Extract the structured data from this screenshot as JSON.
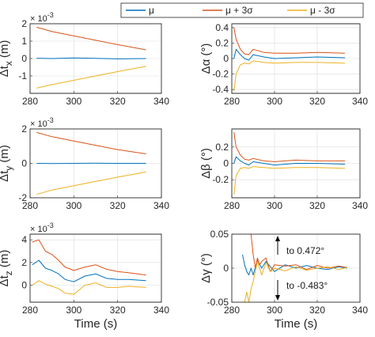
{
  "legend": {
    "items": [
      {
        "label": "μ",
        "color": "#0072BD"
      },
      {
        "label": "μ + 3σ",
        "color": "#D95319"
      },
      {
        "label": "μ - 3σ",
        "color": "#EDB120"
      }
    ]
  },
  "chart_data": [
    {
      "type": "line",
      "id": "tx",
      "ylabel_main": "Δt",
      "ylabel_sub": "x",
      "ylabel_unit": "(m)",
      "xlabel": "",
      "exponent": "× 10^-3",
      "xlim": [
        280,
        340
      ],
      "ylim": [
        -2,
        2
      ],
      "xticks": [
        280,
        300,
        320,
        340
      ],
      "yticks": [
        -1,
        0,
        1,
        2
      ],
      "xtick_labels": [
        "280",
        "300",
        "320",
        "340"
      ],
      "ytick_labels": [
        "-1",
        "0",
        "1",
        "2"
      ],
      "grid": true,
      "series": [
        {
          "name": "μ",
          "color": "#0072BD",
          "x": [
            283,
            290,
            300,
            310,
            320,
            333
          ],
          "y": [
            0.02,
            0.0,
            0.03,
            0.01,
            -0.02,
            0.0
          ]
        },
        {
          "name": "μ + 3σ",
          "color": "#D95319",
          "x": [
            283,
            290,
            300,
            310,
            320,
            333
          ],
          "y": [
            1.8,
            1.55,
            1.3,
            1.05,
            0.8,
            0.5
          ]
        },
        {
          "name": "μ - 3σ",
          "color": "#EDB120",
          "x": [
            283,
            290,
            300,
            310,
            320,
            333
          ],
          "y": [
            -1.7,
            -1.5,
            -1.25,
            -1.0,
            -0.75,
            -0.45
          ]
        }
      ]
    },
    {
      "type": "line",
      "id": "alpha",
      "ylabel_main": "Δα",
      "ylabel_sub": "",
      "ylabel_unit": "(°)",
      "xlabel": "",
      "exponent": "",
      "xlim": [
        280,
        340
      ],
      "ylim": [
        -0.45,
        0.45
      ],
      "xticks": [
        280,
        300,
        320,
        340
      ],
      "yticks": [
        -0.4,
        -0.2,
        0,
        0.2,
        0.4
      ],
      "xtick_labels": [
        "280",
        "300",
        "320",
        "340"
      ],
      "ytick_labels": [
        "-0.4",
        "-0.2",
        "0",
        "0.2",
        "0.4"
      ],
      "grid": true,
      "series": [
        {
          "name": "μ",
          "color": "#0072BD",
          "x": [
            281,
            282,
            284,
            286,
            288,
            290,
            295,
            300,
            310,
            320,
            333
          ],
          "y": [
            0.0,
            0.12,
            0.05,
            0.0,
            -0.02,
            0.05,
            0.02,
            0.0,
            0.01,
            0.02,
            0.01
          ]
        },
        {
          "name": "μ + 3σ",
          "color": "#D95319",
          "x": [
            281,
            282,
            284,
            286,
            288,
            290,
            295,
            300,
            310,
            320,
            333
          ],
          "y": [
            0.4,
            0.25,
            0.12,
            0.06,
            0.05,
            0.12,
            0.08,
            0.07,
            0.07,
            0.08,
            0.07
          ]
        },
        {
          "name": "μ - 3σ",
          "color": "#EDB120",
          "x": [
            281,
            282,
            284,
            286,
            288,
            290,
            295,
            300,
            310,
            320,
            333
          ],
          "y": [
            -0.42,
            -0.2,
            -0.08,
            -0.06,
            -0.07,
            -0.03,
            -0.05,
            -0.06,
            -0.05,
            -0.05,
            -0.06
          ]
        }
      ]
    },
    {
      "type": "line",
      "id": "ty",
      "ylabel_main": "Δt",
      "ylabel_sub": "y",
      "ylabel_unit": "(m)",
      "xlabel": "",
      "exponent": "× 10^-3",
      "xlim": [
        280,
        340
      ],
      "ylim": [
        -2,
        2
      ],
      "xticks": [
        280,
        300,
        320,
        340
      ],
      "yticks": [
        -2,
        0,
        2
      ],
      "xtick_labels": [
        "280",
        "300",
        "320",
        "340"
      ],
      "ytick_labels": [
        "-2",
        "0",
        "2"
      ],
      "grid": true,
      "series": [
        {
          "name": "μ",
          "color": "#0072BD",
          "x": [
            283,
            290,
            300,
            310,
            320,
            333
          ],
          "y": [
            0.0,
            -0.01,
            0.0,
            0.01,
            0.0,
            0.0
          ]
        },
        {
          "name": "μ + 3σ",
          "color": "#D95319",
          "x": [
            283,
            290,
            300,
            310,
            320,
            333
          ],
          "y": [
            1.8,
            1.55,
            1.3,
            1.05,
            0.8,
            0.55
          ]
        },
        {
          "name": "μ - 3σ",
          "color": "#EDB120",
          "x": [
            283,
            290,
            300,
            310,
            320,
            333
          ],
          "y": [
            -1.8,
            -1.55,
            -1.3,
            -1.05,
            -0.8,
            -0.5
          ]
        }
      ]
    },
    {
      "type": "line",
      "id": "beta",
      "ylabel_main": "Δβ",
      "ylabel_sub": "",
      "ylabel_unit": "(°)",
      "xlabel": "",
      "exponent": "",
      "xlim": [
        280,
        340
      ],
      "ylim": [
        -0.42,
        0.42
      ],
      "xticks": [
        280,
        300,
        320,
        340
      ],
      "yticks": [
        -0.2,
        0,
        0.2
      ],
      "xtick_labels": [
        "280",
        "300",
        "320",
        "340"
      ],
      "ytick_labels": [
        "-0.2",
        "0",
        "0.2"
      ],
      "grid": true,
      "series": [
        {
          "name": "μ",
          "color": "#0072BD",
          "x": [
            281,
            282,
            284,
            286,
            288,
            290,
            295,
            300,
            310,
            320,
            333
          ],
          "y": [
            0.0,
            0.08,
            0.03,
            0.0,
            -0.02,
            0.02,
            0.0,
            -0.02,
            0.0,
            0.0,
            -0.01
          ]
        },
        {
          "name": "μ + 3σ",
          "color": "#D95319",
          "x": [
            281,
            282,
            284,
            286,
            288,
            290,
            295,
            300,
            310,
            320,
            333
          ],
          "y": [
            0.38,
            0.2,
            0.1,
            0.05,
            0.04,
            0.06,
            0.03,
            0.02,
            0.04,
            0.03,
            0.03
          ]
        },
        {
          "name": "μ - 3σ",
          "color": "#EDB120",
          "x": [
            281,
            282,
            284,
            286,
            288,
            290,
            295,
            300,
            310,
            320,
            333
          ],
          "y": [
            -0.38,
            -0.15,
            -0.06,
            -0.05,
            -0.06,
            -0.04,
            -0.05,
            -0.06,
            -0.05,
            -0.05,
            -0.06
          ]
        }
      ]
    },
    {
      "type": "line",
      "id": "tz",
      "ylabel_main": "Δt",
      "ylabel_sub": "z",
      "ylabel_unit": "(m)",
      "xlabel": "Time (s)",
      "exponent": "× 10^-3",
      "xlim": [
        280,
        340
      ],
      "ylim": [
        -1.5,
        4.5
      ],
      "xticks": [
        280,
        300,
        320,
        340
      ],
      "yticks": [
        0,
        2,
        4
      ],
      "xtick_labels": [
        "280",
        "300",
        "320",
        "340"
      ],
      "ytick_labels": [
        "0",
        "2",
        "4"
      ],
      "grid": true,
      "series": [
        {
          "name": "μ",
          "color": "#0072BD",
          "x": [
            281,
            284,
            287,
            290,
            293,
            296,
            300,
            305,
            310,
            315,
            320,
            325,
            333
          ],
          "y": [
            1.8,
            2.2,
            1.5,
            1.3,
            1.0,
            0.5,
            0.3,
            0.8,
            1.0,
            0.6,
            0.5,
            0.5,
            0.4
          ]
        },
        {
          "name": "μ + 3σ",
          "color": "#D95319",
          "x": [
            281,
            284,
            287,
            290,
            293,
            296,
            300,
            305,
            310,
            315,
            320,
            325,
            333
          ],
          "y": [
            3.8,
            4.0,
            3.0,
            2.7,
            2.2,
            1.6,
            1.3,
            1.6,
            1.8,
            1.4,
            1.2,
            1.1,
            0.9
          ]
        },
        {
          "name": "μ - 3σ",
          "color": "#EDB120",
          "x": [
            281,
            284,
            287,
            290,
            293,
            296,
            300,
            305,
            310,
            315,
            320,
            325,
            333
          ],
          "y": [
            0.0,
            0.4,
            0.1,
            -0.1,
            -0.3,
            -0.7,
            -0.8,
            0.0,
            0.2,
            -0.2,
            -0.2,
            -0.1,
            -0.2
          ]
        }
      ]
    },
    {
      "type": "line",
      "id": "gamma",
      "ylabel_main": "Δγ",
      "ylabel_sub": "",
      "ylabel_unit": "(°)",
      "xlabel": "Time (s)",
      "exponent": "",
      "xlim": [
        280,
        340
      ],
      "ylim": [
        -0.05,
        0.05
      ],
      "xticks": [
        280,
        300,
        320,
        340
      ],
      "yticks": [
        -0.05,
        0,
        0.05
      ],
      "xtick_labels": [
        "280",
        "300",
        "320",
        "340"
      ],
      "ytick_labels": [
        "-0.05",
        "0",
        "0.05"
      ],
      "grid": true,
      "annotations": [
        {
          "text": "to 0.472°",
          "direction": "up",
          "x": 290
        },
        {
          "text": "to -0.483°",
          "direction": "down",
          "x": 290
        }
      ],
      "series": [
        {
          "name": "μ",
          "color": "#0072BD",
          "x": [
            285,
            286,
            287,
            288,
            289,
            290,
            292,
            294,
            296,
            300,
            305,
            310,
            315,
            320,
            325,
            330,
            334
          ],
          "y": [
            0.02,
            0.005,
            -0.005,
            -0.01,
            0.0,
            -0.01,
            0.012,
            0.0,
            0.01,
            -0.005,
            0.005,
            0.0,
            0.004,
            0.0,
            -0.002,
            0.002,
            0.0
          ]
        },
        {
          "name": "μ + 3σ",
          "color": "#D95319",
          "x": [
            289,
            290,
            291,
            292,
            293,
            294,
            296,
            298,
            300,
            305,
            310,
            315,
            320,
            325,
            330,
            334
          ],
          "y": [
            0.05,
            0.02,
            0.0,
            0.015,
            0.005,
            0.01,
            0.015,
            -0.005,
            0.005,
            0.003,
            0.005,
            -0.002,
            0.004,
            0.0,
            0.003,
            0.001
          ]
        },
        {
          "name": "μ - 3σ",
          "color": "#EDB120",
          "x": [
            286,
            287,
            288,
            289,
            290,
            292,
            294,
            296,
            298,
            300,
            305,
            310,
            315,
            320,
            325,
            330,
            334
          ],
          "y": [
            -0.05,
            -0.035,
            -0.05,
            -0.03,
            -0.02,
            0.01,
            -0.01,
            0.008,
            -0.005,
            0.0,
            -0.004,
            0.002,
            -0.003,
            0.0,
            0.002,
            -0.002,
            0.001
          ]
        }
      ]
    }
  ]
}
